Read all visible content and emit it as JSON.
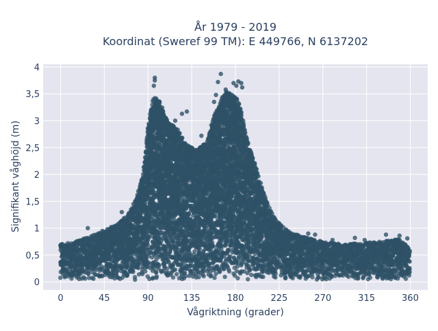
{
  "chart_data": {
    "type": "scatter",
    "title_line1": "År 1979 - 2019",
    "title_line2": "Koordinat (Sweref 99 TM): E 449766, N 6137202",
    "xlabel": "Vågriktning (grader)",
    "ylabel": "Signifikant våghöjd (m)",
    "xlim": [
      -18,
      378
    ],
    "ylim": [
      -0.15,
      4.05
    ],
    "x_ticks": [
      0,
      45,
      90,
      135,
      180,
      225,
      270,
      315,
      360
    ],
    "x_tick_labels": [
      "0",
      "45",
      "90",
      "135",
      "180",
      "225",
      "270",
      "315",
      "360"
    ],
    "y_ticks": [
      0,
      0.5,
      1,
      1.5,
      2,
      2.5,
      3,
      3.5,
      4
    ],
    "y_tick_labels": [
      "0",
      "0,5",
      "1",
      "1,5",
      "2",
      "2,5",
      "3",
      "3,5",
      "4"
    ],
    "grid": true,
    "marker_color": "#2f5167",
    "background_color": "#e5e5ef",
    "envelope": {
      "x": [
        0,
        15,
        30,
        45,
        60,
        75,
        85,
        90,
        95,
        100,
        110,
        120,
        130,
        140,
        150,
        160,
        170,
        180,
        185,
        190,
        200,
        210,
        220,
        230,
        240,
        250,
        270,
        290,
        310,
        330,
        350,
        360
      ],
      "y": [
        0.7,
        0.75,
        0.85,
        0.95,
        1.1,
        1.4,
        2.0,
        2.9,
        3.4,
        3.45,
        3.0,
        2.85,
        2.55,
        2.45,
        2.6,
        3.2,
        3.55,
        3.45,
        3.3,
        2.8,
        2.2,
        1.6,
        1.2,
        1.0,
        0.9,
        0.85,
        0.75,
        0.7,
        0.72,
        0.75,
        0.8,
        0.6
      ]
    },
    "outliers": [
      {
        "x": 97,
        "y": 3.8
      },
      {
        "x": 97,
        "y": 3.75
      },
      {
        "x": 96,
        "y": 3.65
      },
      {
        "x": 165,
        "y": 3.87
      },
      {
        "x": 162,
        "y": 3.72
      },
      {
        "x": 170,
        "y": 3.58
      },
      {
        "x": 178,
        "y": 3.7
      },
      {
        "x": 183,
        "y": 3.73
      },
      {
        "x": 186,
        "y": 3.7
      },
      {
        "x": 187,
        "y": 3.62
      },
      {
        "x": 181,
        "y": 3.65
      },
      {
        "x": 130,
        "y": 3.17
      },
      {
        "x": 125,
        "y": 3.13
      },
      {
        "x": 118,
        "y": 3.0
      },
      {
        "x": 158,
        "y": 3.35
      },
      {
        "x": 160,
        "y": 3.48
      },
      {
        "x": 145,
        "y": 2.72
      },
      {
        "x": 75,
        "y": 1.45
      },
      {
        "x": 63,
        "y": 1.3
      },
      {
        "x": 28,
        "y": 1.0
      },
      {
        "x": 43,
        "y": 0.95
      },
      {
        "x": 335,
        "y": 0.88
      },
      {
        "x": 349,
        "y": 0.86
      },
      {
        "x": 357,
        "y": 0.81
      },
      {
        "x": 303,
        "y": 0.82
      },
      {
        "x": 313,
        "y": 0.78
      },
      {
        "x": 323,
        "y": 0.72
      },
      {
        "x": 280,
        "y": 0.78
      },
      {
        "x": 255,
        "y": 0.9
      },
      {
        "x": 262,
        "y": 0.88
      }
    ]
  }
}
